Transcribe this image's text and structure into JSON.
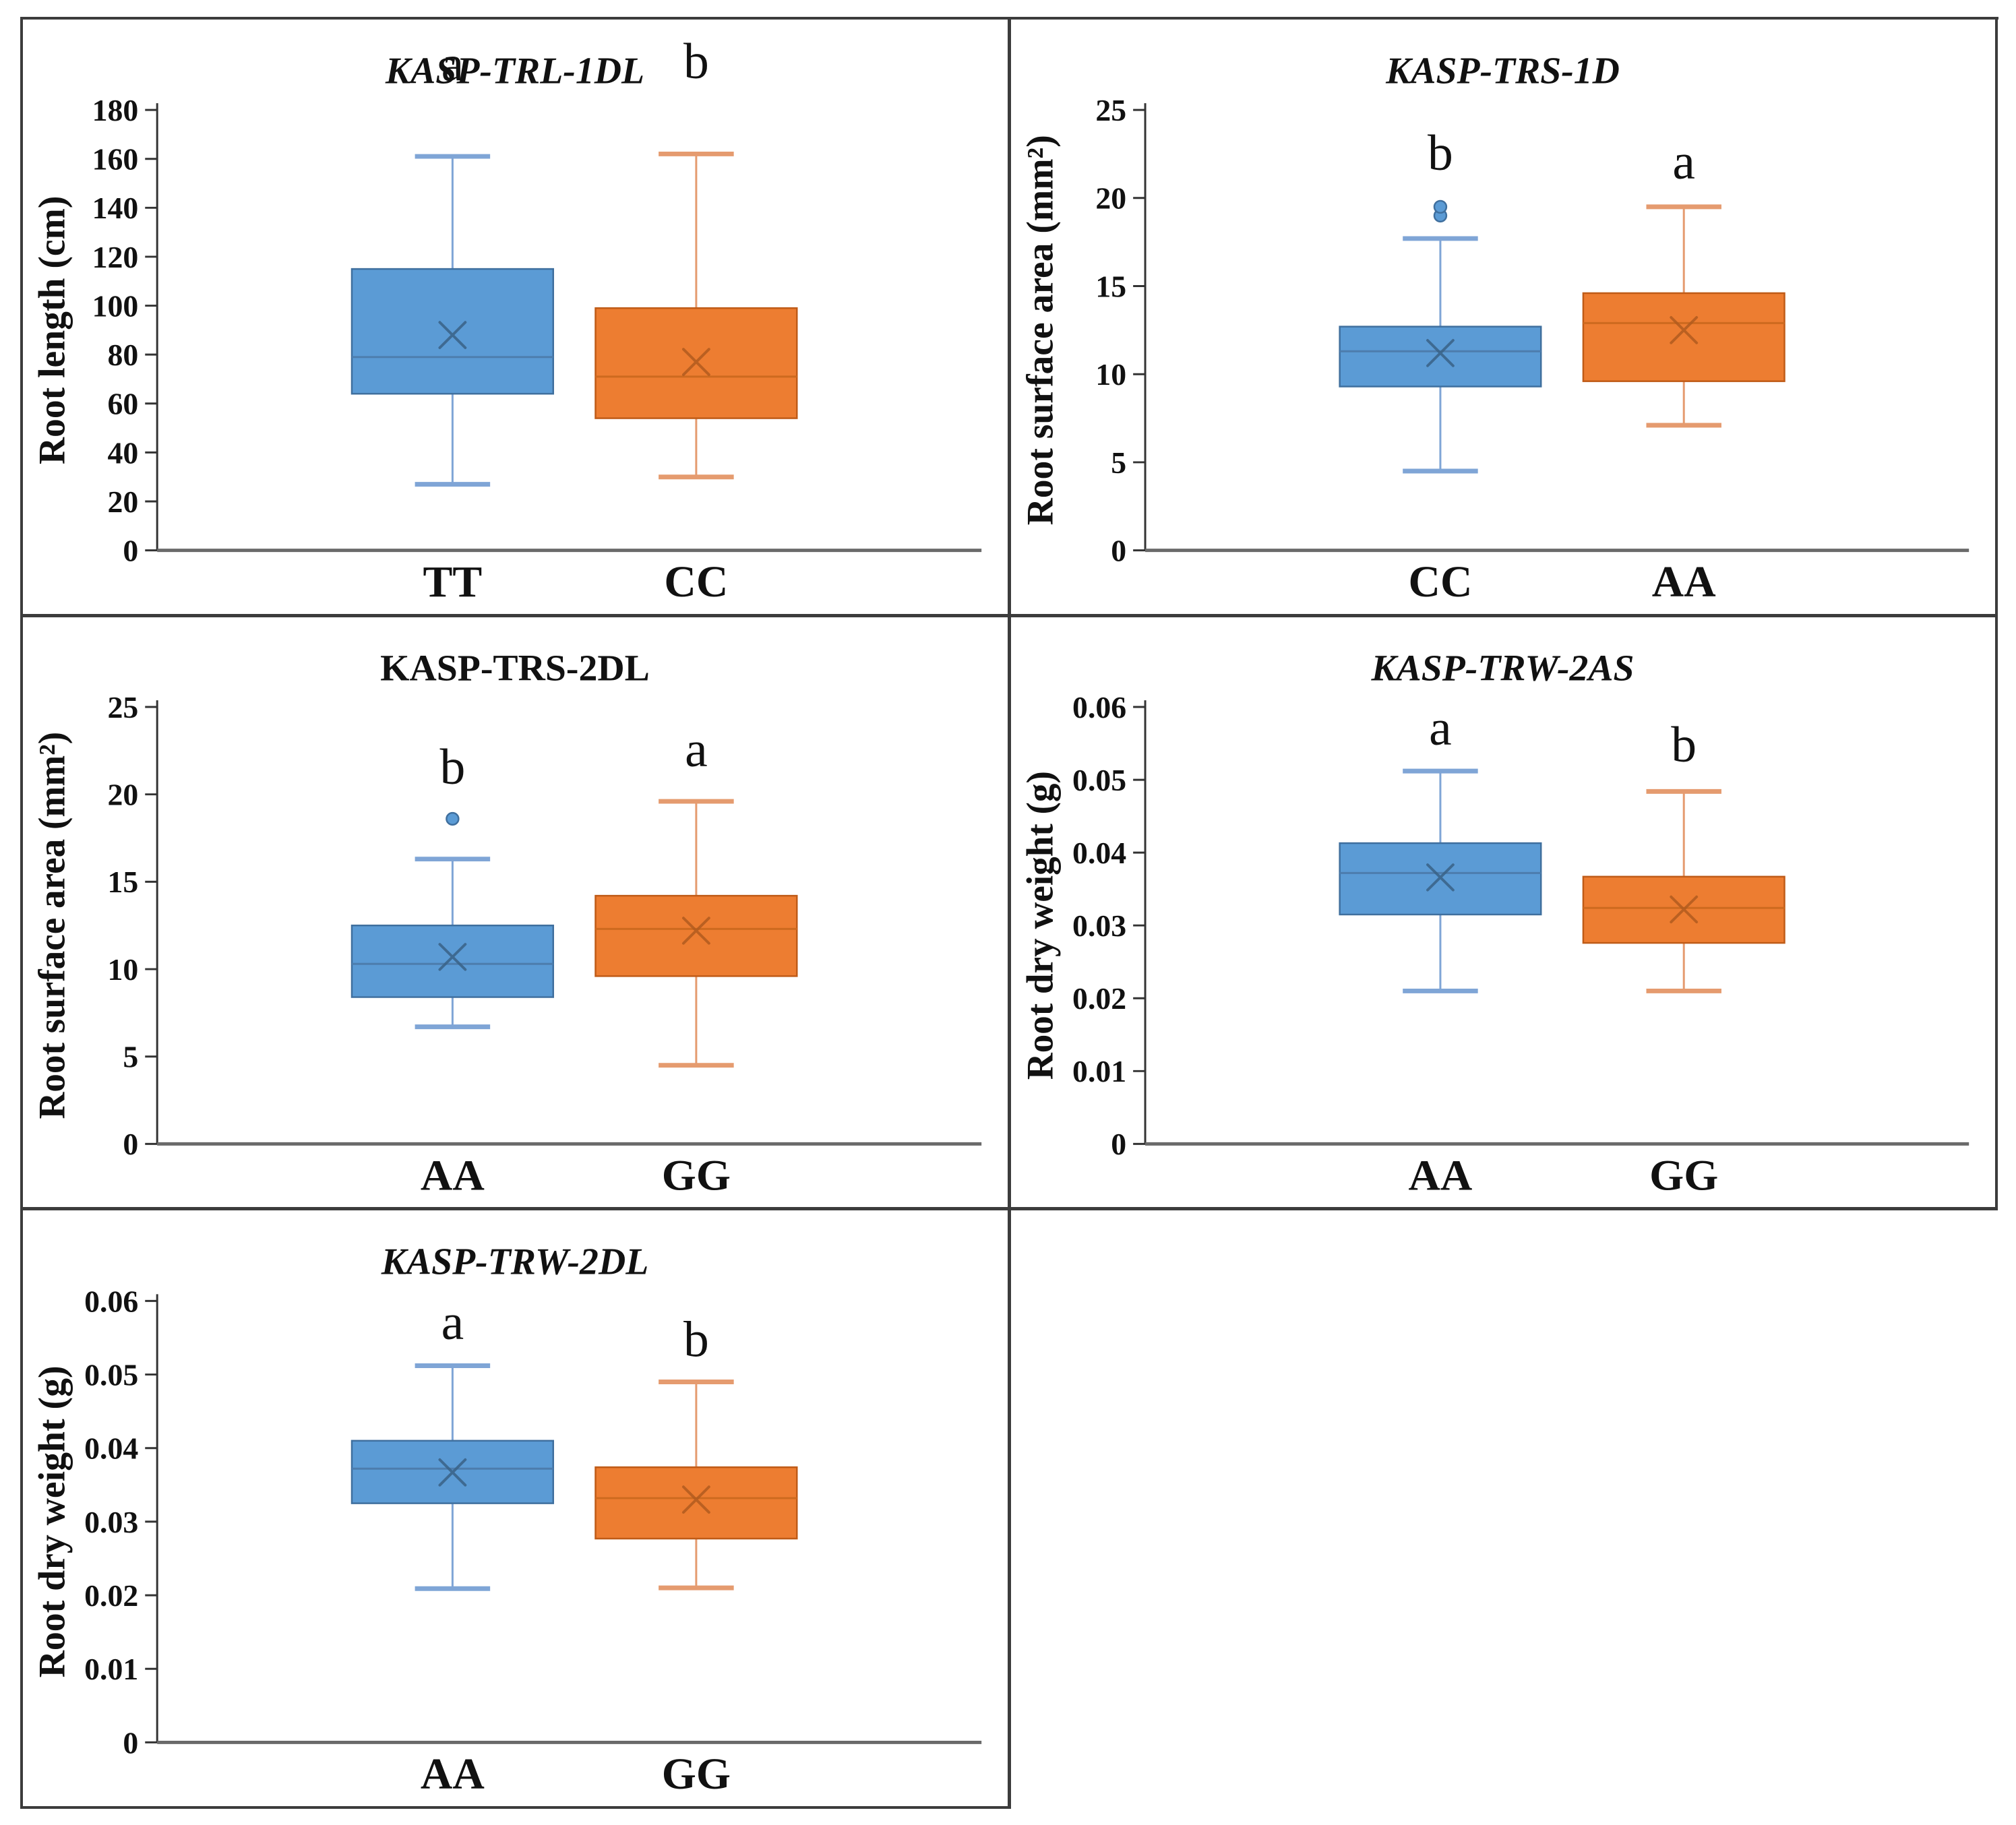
{
  "figure": {
    "background": "#ffffff",
    "border_color": "#3c3c3c"
  },
  "colors": {
    "blue_fill": "#5B9BD5",
    "blue_edge": "#3F6F9E",
    "blue_whisker": "#7FA5D6",
    "blue_median": "#4D7DAD",
    "blue_mean": "#3A6186",
    "orange_fill": "#ED7D31",
    "orange_edge": "#BF5B17",
    "orange_whisker": "#E59B6F",
    "orange_median": "#CD6A1F",
    "orange_mean": "#B05A1E",
    "axis": "#4d4d4d",
    "text": "#111111"
  },
  "chart_data": [
    {
      "type": "boxplot",
      "title": "KASP-TRL-1DL",
      "title_italic": true,
      "ylabel": "Root length (cm)",
      "ymin": 0,
      "ymax": 180,
      "tick_values": [
        0,
        20,
        40,
        60,
        80,
        100,
        120,
        140,
        160,
        180
      ],
      "tick_labels": [
        "0",
        "20",
        "40",
        "60",
        "80",
        "100",
        "120",
        "140",
        "160",
        "180"
      ],
      "categories": [
        "TT",
        "CC"
      ],
      "series": [
        {
          "name": "TT",
          "color": "blue",
          "letter": "a",
          "letter_value": 192,
          "whisker_low": 27,
          "q1": 64,
          "median": 79,
          "mean": 88,
          "q3": 115,
          "whisker_high": 161,
          "outliers": []
        },
        {
          "name": "CC",
          "color": "orange",
          "letter": "b",
          "letter_value": 193,
          "whisker_low": 30,
          "q1": 54,
          "median": 71,
          "mean": 77,
          "q3": 99,
          "whisker_high": 162,
          "outliers": []
        }
      ]
    },
    {
      "type": "boxplot",
      "title": "KASP-TRS-1D",
      "title_italic": true,
      "ylabel": "Root surface area (mm²)",
      "ymin": 0,
      "ymax": 25,
      "tick_values": [
        0,
        5,
        10,
        15,
        20,
        25
      ],
      "tick_labels": [
        "0",
        "5",
        "10",
        "15",
        "20",
        "25"
      ],
      "categories": [
        "CC",
        "AA"
      ],
      "series": [
        {
          "name": "CC",
          "color": "blue",
          "letter": "b",
          "letter_value": 21.6,
          "whisker_low": 4.5,
          "q1": 9.3,
          "median": 11.3,
          "mean": 11.2,
          "q3": 12.7,
          "whisker_high": 17.7,
          "outliers": [
            19.0,
            19.5
          ]
        },
        {
          "name": "AA",
          "color": "orange",
          "letter": "a",
          "letter_value": 21.1,
          "whisker_low": 7.1,
          "q1": 9.6,
          "median": 12.9,
          "mean": 12.5,
          "q3": 14.6,
          "whisker_high": 19.5,
          "outliers": []
        }
      ]
    },
    {
      "type": "boxplot",
      "title": "KASP-TRS-2DL",
      "title_italic": false,
      "ylabel": "Root surface area (mm²)",
      "ymin": 0,
      "ymax": 25,
      "tick_values": [
        0,
        5,
        10,
        15,
        20,
        25
      ],
      "tick_labels": [
        "0",
        "5",
        "10",
        "15",
        "20",
        "25"
      ],
      "categories": [
        "AA",
        "GG"
      ],
      "series": [
        {
          "name": "AA",
          "color": "blue",
          "letter": "b",
          "letter_value": 20.6,
          "whisker_low": 6.7,
          "q1": 8.4,
          "median": 10.3,
          "mean": 10.7,
          "q3": 12.5,
          "whisker_high": 16.3,
          "outliers": [
            18.6
          ]
        },
        {
          "name": "GG",
          "color": "orange",
          "letter": "a",
          "letter_value": 21.6,
          "whisker_low": 4.5,
          "q1": 9.6,
          "median": 12.3,
          "mean": 12.2,
          "q3": 14.2,
          "whisker_high": 19.6,
          "outliers": []
        }
      ]
    },
    {
      "type": "boxplot",
      "title": "KASP-TRW-2AS",
      "title_italic": true,
      "ylabel": "Root dry weight (g)",
      "ymin": 0,
      "ymax": 0.06,
      "tick_values": [
        0,
        0.01,
        0.02,
        0.03,
        0.04,
        0.05,
        0.06
      ],
      "tick_labels": [
        "0",
        "0.01",
        "0.02",
        "0.03",
        "0.04",
        "0.05",
        "0.06"
      ],
      "categories": [
        "AA",
        "GG"
      ],
      "series": [
        {
          "name": "AA",
          "color": "blue",
          "letter": "a",
          "letter_value": 0.0548,
          "whisker_low": 0.021,
          "q1": 0.0315,
          "median": 0.0372,
          "mean": 0.0366,
          "q3": 0.0413,
          "whisker_high": 0.0512,
          "outliers": []
        },
        {
          "name": "GG",
          "color": "orange",
          "letter": "b",
          "letter_value": 0.0525,
          "whisker_low": 0.021,
          "q1": 0.0276,
          "median": 0.0324,
          "mean": 0.0322,
          "q3": 0.0367,
          "whisker_high": 0.0484,
          "outliers": []
        }
      ]
    },
    {
      "type": "boxplot",
      "title": "KASP-TRW-2DL",
      "title_italic": true,
      "ylabel": "Root dry weight (g)",
      "ymin": 0,
      "ymax": 0.06,
      "tick_values": [
        0,
        0.01,
        0.02,
        0.03,
        0.04,
        0.05,
        0.06
      ],
      "tick_labels": [
        "0",
        "0.01",
        "0.02",
        "0.03",
        "0.04",
        "0.05",
        "0.06"
      ],
      "categories": [
        "AA",
        "GG"
      ],
      "series": [
        {
          "name": "AA",
          "color": "blue",
          "letter": "a",
          "letter_value": 0.0548,
          "whisker_low": 0.0209,
          "q1": 0.0325,
          "median": 0.0372,
          "mean": 0.0367,
          "q3": 0.041,
          "whisker_high": 0.0512,
          "outliers": []
        },
        {
          "name": "GG",
          "color": "orange",
          "letter": "b",
          "letter_value": 0.0525,
          "whisker_low": 0.021,
          "q1": 0.0277,
          "median": 0.0332,
          "mean": 0.033,
          "q3": 0.0374,
          "whisker_high": 0.049,
          "outliers": []
        }
      ]
    }
  ]
}
